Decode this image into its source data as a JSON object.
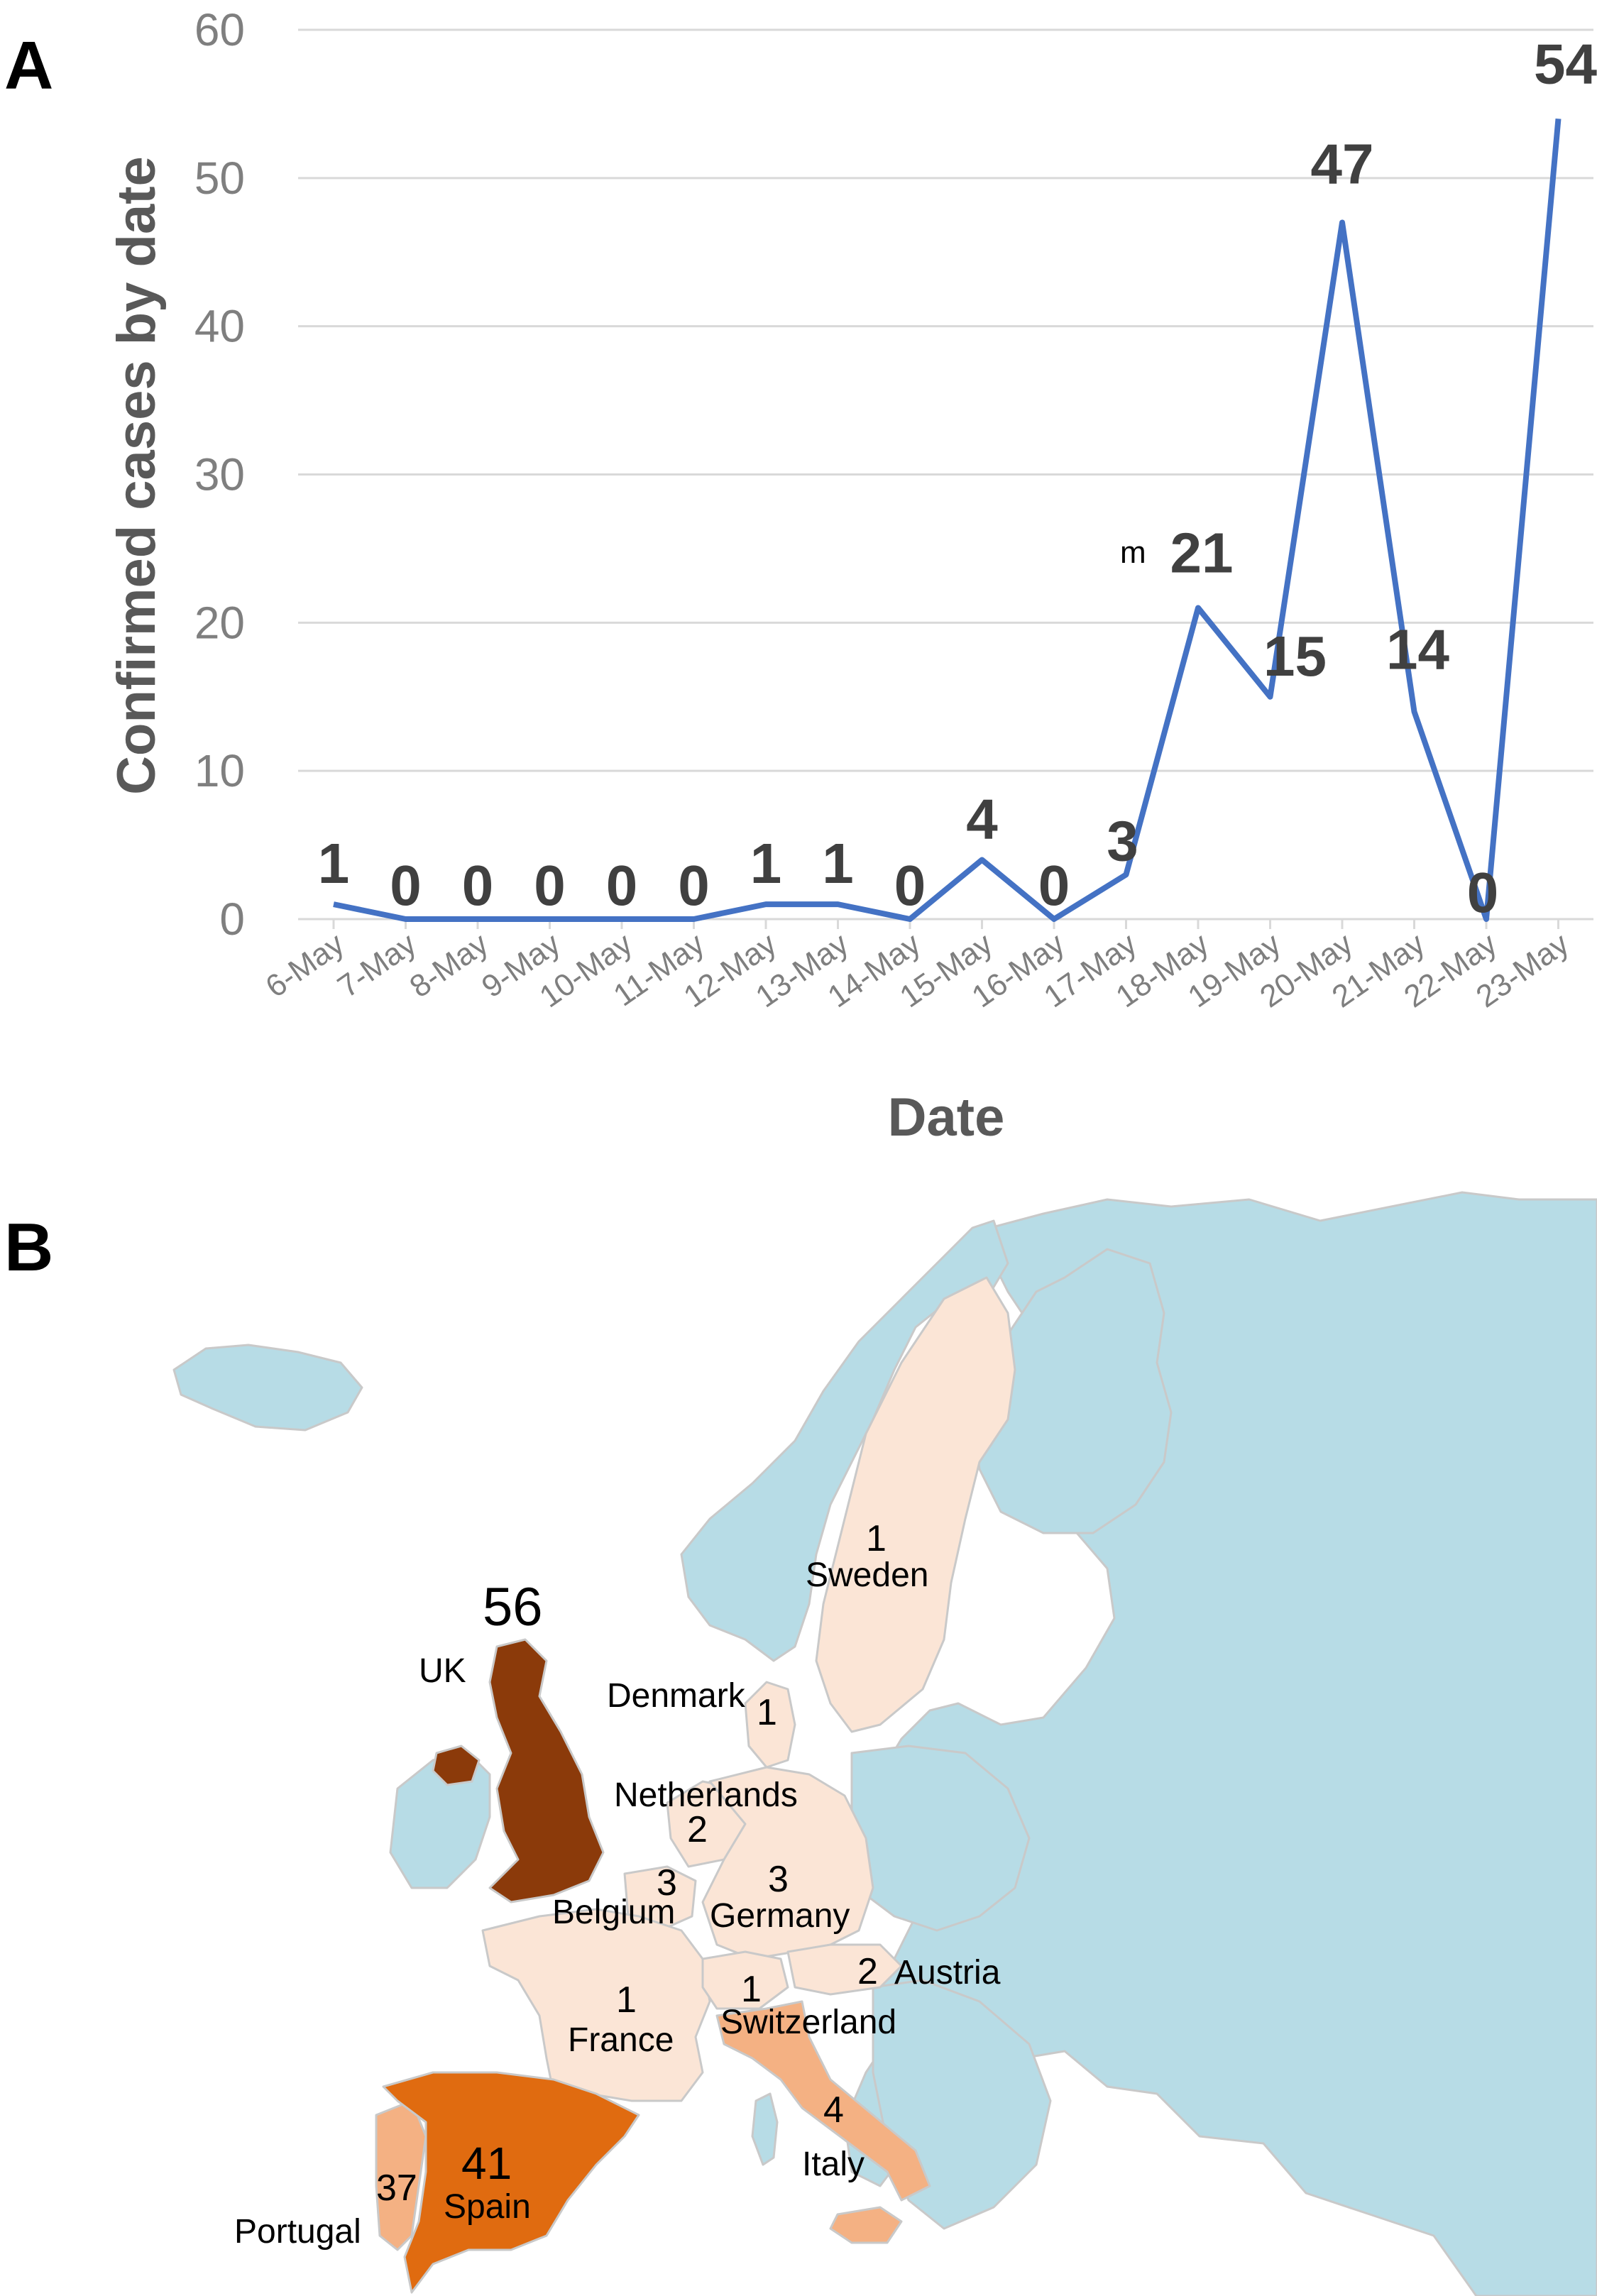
{
  "panel_a": {
    "letter": "A"
  },
  "panel_b": {
    "letter": "B"
  },
  "chart_data": {
    "type": "line",
    "xlabel": "Date",
    "ylabel": "Confirmed cases by date",
    "ylim": [
      0,
      60
    ],
    "yticks": [
      "0",
      "10",
      "20",
      "30",
      "40",
      "50",
      "60"
    ],
    "grid": true,
    "categories": [
      "6-May",
      "7-May",
      "8-May",
      "9-May",
      "10-May",
      "11-May",
      "12-May",
      "13-May",
      "14-May",
      "15-May",
      "16-May",
      "17-May",
      "18-May",
      "19-May",
      "20-May",
      "21-May",
      "22-May",
      "23-May"
    ],
    "series": [
      {
        "values": [
          1,
          0,
          0,
          0,
          0,
          0,
          1,
          1,
          0,
          4,
          0,
          3,
          21,
          15,
          47,
          14,
          0,
          54
        ],
        "color": "#4472c4"
      }
    ],
    "annotations": [
      {
        "text": "m",
        "near": "18-May"
      }
    ]
  },
  "map": {
    "colors": {
      "zero": "#b7dce6",
      "low": "#fbe5d6",
      "mid": "#f4b183",
      "high": "#e06b10",
      "max": "#8b3a0a"
    },
    "countries": [
      {
        "name": "UK",
        "count": "56"
      },
      {
        "name": "Spain",
        "count": "41"
      },
      {
        "name": "Portugal",
        "count": "37"
      },
      {
        "name": "Italy",
        "count": "4"
      },
      {
        "name": "Belgium",
        "count": "3"
      },
      {
        "name": "Germany",
        "count": "3"
      },
      {
        "name": "Netherlands",
        "count": "2"
      },
      {
        "name": "Austria",
        "count": "2"
      },
      {
        "name": "France",
        "count": "1"
      },
      {
        "name": "Switzerland",
        "count": "1"
      },
      {
        "name": "Sweden",
        "count": "1"
      },
      {
        "name": "Denmark",
        "count": "1"
      }
    ]
  }
}
